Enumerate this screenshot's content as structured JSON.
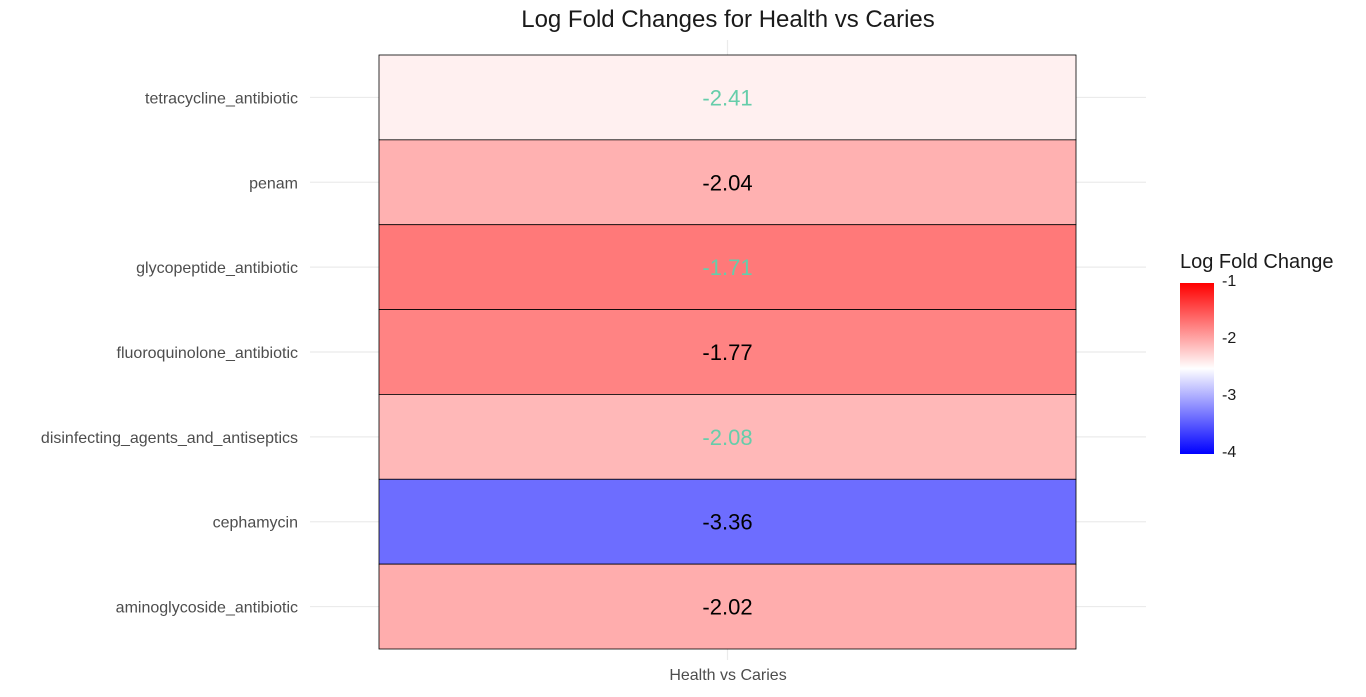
{
  "chart_data": {
    "type": "heatmap",
    "title": "Log Fold Changes for Health vs Caries",
    "x_categories": [
      "Health vs Caries"
    ],
    "y_categories": [
      "tetracycline_antibiotic",
      "penam",
      "glycopeptide_antibiotic",
      "fluoroquinolone_antibiotic",
      "disinfecting_agents_and_antiseptics",
      "cephamycin",
      "aminoglycoside_antibiotic"
    ],
    "cells": [
      {
        "x": "Health vs Caries",
        "y": "tetracycline_antibiotic",
        "value": -2.41,
        "label": "-2.41",
        "label_color": "#66cdaa"
      },
      {
        "x": "Health vs Caries",
        "y": "penam",
        "value": -2.04,
        "label": "-2.04",
        "label_color": "#000000"
      },
      {
        "x": "Health vs Caries",
        "y": "glycopeptide_antibiotic",
        "value": -1.71,
        "label": "-1.71",
        "label_color": "#66cdaa"
      },
      {
        "x": "Health vs Caries",
        "y": "fluoroquinolone_antibiotic",
        "value": -1.77,
        "label": "-1.77",
        "label_color": "#000000"
      },
      {
        "x": "Health vs Caries",
        "y": "disinfecting_agents_and_antiseptics",
        "value": -2.08,
        "label": "-2.08",
        "label_color": "#66cdaa"
      },
      {
        "x": "Health vs Caries",
        "y": "cephamycin",
        "value": -3.36,
        "label": "-3.36",
        "label_color": "#000000"
      },
      {
        "x": "Health vs Caries",
        "y": "aminoglycoside_antibiotic",
        "value": -2.02,
        "label": "-2.02",
        "label_color": "#000000"
      }
    ],
    "legend": {
      "title": "Log Fold Change",
      "placement": "right",
      "range": [
        -4,
        -1
      ],
      "midpoint": -2.5,
      "ticks": [
        "-1",
        "-2",
        "-3",
        "-4"
      ],
      "colors": {
        "low": "#0000ff",
        "mid": "#ffffff",
        "high": "#ff0000"
      }
    },
    "grid": true
  }
}
